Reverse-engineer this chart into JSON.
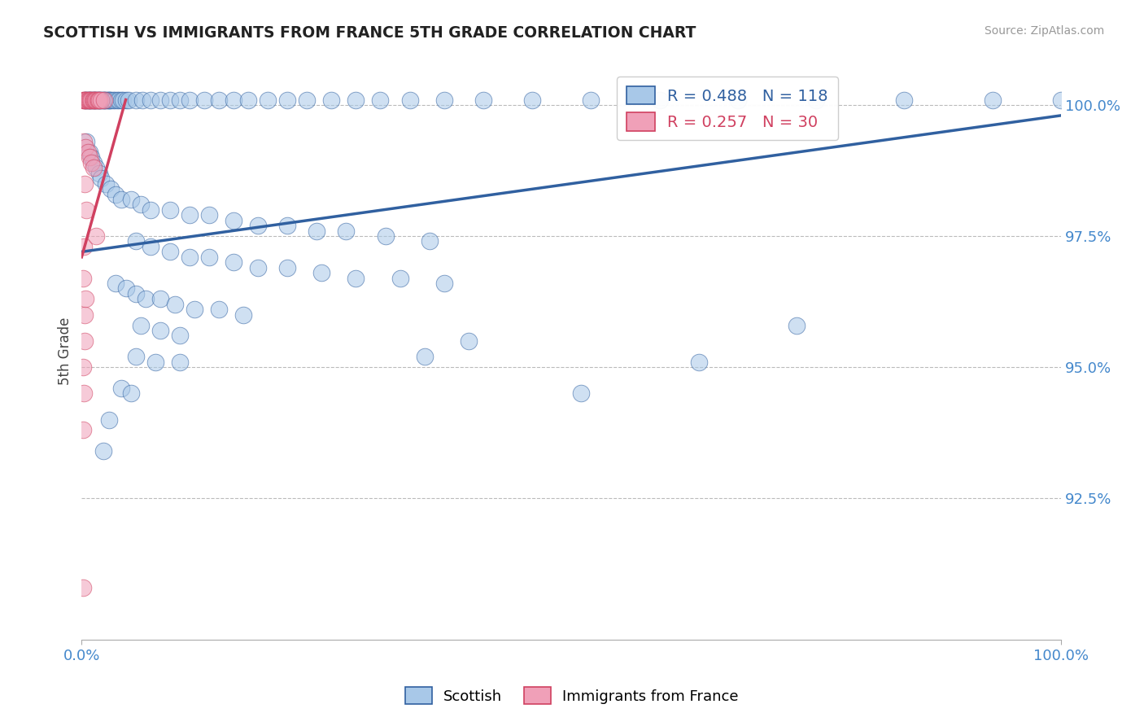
{
  "title": "SCOTTISH VS IMMIGRANTS FROM FRANCE 5TH GRADE CORRELATION CHART",
  "source": "Source: ZipAtlas.com",
  "ylabel": "5th Grade",
  "xlim": [
    0.0,
    1.0
  ],
  "ylim": [
    0.898,
    1.008
  ],
  "yticks": [
    0.925,
    0.95,
    0.975,
    1.0
  ],
  "ytick_labels": [
    "92.5%",
    "95.0%",
    "97.5%",
    "100.0%"
  ],
  "legend_blue_label": "Scottish",
  "legend_pink_label": "Immigrants from France",
  "r_blue": 0.488,
  "n_blue": 118,
  "r_pink": 0.257,
  "n_pink": 30,
  "blue_color": "#A8C8E8",
  "pink_color": "#F0A0B8",
  "blue_line_color": "#3060A0",
  "pink_line_color": "#D04060",
  "background_color": "#FFFFFF",
  "grid_color": "#BBBBBB",
  "title_color": "#222222",
  "axis_label_color": "#444444",
  "tick_color": "#4488CC",
  "source_color": "#999999",
  "blue_trend": [
    0.0,
    0.972,
    1.0,
    0.998
  ],
  "pink_trend": [
    0.0,
    0.971,
    0.045,
    1.001
  ],
  "scatter_blue": [
    [
      0.003,
      1.001
    ],
    [
      0.004,
      1.001
    ],
    [
      0.005,
      1.001
    ],
    [
      0.006,
      1.001
    ],
    [
      0.007,
      1.001
    ],
    [
      0.008,
      1.001
    ],
    [
      0.009,
      1.001
    ],
    [
      0.01,
      1.001
    ],
    [
      0.011,
      1.001
    ],
    [
      0.012,
      1.001
    ],
    [
      0.013,
      1.001
    ],
    [
      0.014,
      1.001
    ],
    [
      0.015,
      1.001
    ],
    [
      0.016,
      1.001
    ],
    [
      0.017,
      1.001
    ],
    [
      0.018,
      1.001
    ],
    [
      0.019,
      1.001
    ],
    [
      0.02,
      1.001
    ],
    [
      0.021,
      1.001
    ],
    [
      0.022,
      1.001
    ],
    [
      0.023,
      1.001
    ],
    [
      0.024,
      1.001
    ],
    [
      0.025,
      1.001
    ],
    [
      0.026,
      1.001
    ],
    [
      0.027,
      1.001
    ],
    [
      0.028,
      1.001
    ],
    [
      0.029,
      1.001
    ],
    [
      0.03,
      1.001
    ],
    [
      0.032,
      1.001
    ],
    [
      0.034,
      1.001
    ],
    [
      0.036,
      1.001
    ],
    [
      0.038,
      1.001
    ],
    [
      0.04,
      1.001
    ],
    [
      0.042,
      1.001
    ],
    [
      0.045,
      1.001
    ],
    [
      0.048,
      1.001
    ],
    [
      0.055,
      1.001
    ],
    [
      0.062,
      1.001
    ],
    [
      0.07,
      1.001
    ],
    [
      0.08,
      1.001
    ],
    [
      0.09,
      1.001
    ],
    [
      0.1,
      1.001
    ],
    [
      0.11,
      1.001
    ],
    [
      0.125,
      1.001
    ],
    [
      0.14,
      1.001
    ],
    [
      0.155,
      1.001
    ],
    [
      0.17,
      1.001
    ],
    [
      0.19,
      1.001
    ],
    [
      0.21,
      1.001
    ],
    [
      0.23,
      1.001
    ],
    [
      0.255,
      1.001
    ],
    [
      0.28,
      1.001
    ],
    [
      0.305,
      1.001
    ],
    [
      0.335,
      1.001
    ],
    [
      0.37,
      1.001
    ],
    [
      0.41,
      1.001
    ],
    [
      0.46,
      1.001
    ],
    [
      0.52,
      1.001
    ],
    [
      0.59,
      1.001
    ],
    [
      0.67,
      1.001
    ],
    [
      0.75,
      1.001
    ],
    [
      0.84,
      1.001
    ],
    [
      0.93,
      1.001
    ],
    [
      1.0,
      1.001
    ],
    [
      0.005,
      0.993
    ],
    [
      0.008,
      0.991
    ],
    [
      0.01,
      0.99
    ],
    [
      0.012,
      0.989
    ],
    [
      0.015,
      0.988
    ],
    [
      0.018,
      0.987
    ],
    [
      0.02,
      0.986
    ],
    [
      0.025,
      0.985
    ],
    [
      0.03,
      0.984
    ],
    [
      0.035,
      0.983
    ],
    [
      0.04,
      0.982
    ],
    [
      0.05,
      0.982
    ],
    [
      0.06,
      0.981
    ],
    [
      0.07,
      0.98
    ],
    [
      0.09,
      0.98
    ],
    [
      0.11,
      0.979
    ],
    [
      0.13,
      0.979
    ],
    [
      0.155,
      0.978
    ],
    [
      0.18,
      0.977
    ],
    [
      0.21,
      0.977
    ],
    [
      0.24,
      0.976
    ],
    [
      0.27,
      0.976
    ],
    [
      0.055,
      0.974
    ],
    [
      0.07,
      0.973
    ],
    [
      0.09,
      0.972
    ],
    [
      0.11,
      0.971
    ],
    [
      0.13,
      0.971
    ],
    [
      0.155,
      0.97
    ],
    [
      0.18,
      0.969
    ],
    [
      0.21,
      0.969
    ],
    [
      0.245,
      0.968
    ],
    [
      0.28,
      0.967
    ],
    [
      0.325,
      0.967
    ],
    [
      0.37,
      0.966
    ],
    [
      0.31,
      0.975
    ],
    [
      0.355,
      0.974
    ],
    [
      0.035,
      0.966
    ],
    [
      0.045,
      0.965
    ],
    [
      0.055,
      0.964
    ],
    [
      0.065,
      0.963
    ],
    [
      0.08,
      0.963
    ],
    [
      0.095,
      0.962
    ],
    [
      0.115,
      0.961
    ],
    [
      0.14,
      0.961
    ],
    [
      0.165,
      0.96
    ],
    [
      0.06,
      0.958
    ],
    [
      0.08,
      0.957
    ],
    [
      0.1,
      0.956
    ],
    [
      0.055,
      0.952
    ],
    [
      0.075,
      0.951
    ],
    [
      0.1,
      0.951
    ],
    [
      0.04,
      0.946
    ],
    [
      0.05,
      0.945
    ],
    [
      0.028,
      0.94
    ],
    [
      0.022,
      0.934
    ],
    [
      0.35,
      0.952
    ],
    [
      0.395,
      0.955
    ],
    [
      0.51,
      0.945
    ],
    [
      0.63,
      0.951
    ],
    [
      0.73,
      0.958
    ]
  ],
  "scatter_pink": [
    [
      0.001,
      1.001
    ],
    [
      0.002,
      1.001
    ],
    [
      0.003,
      1.001
    ],
    [
      0.004,
      1.001
    ],
    [
      0.005,
      1.001
    ],
    [
      0.006,
      1.001
    ],
    [
      0.007,
      1.001
    ],
    [
      0.008,
      1.001
    ],
    [
      0.009,
      1.001
    ],
    [
      0.01,
      1.001
    ],
    [
      0.011,
      1.001
    ],
    [
      0.012,
      1.001
    ],
    [
      0.013,
      1.001
    ],
    [
      0.014,
      1.001
    ],
    [
      0.015,
      1.001
    ],
    [
      0.016,
      1.001
    ],
    [
      0.017,
      1.001
    ],
    [
      0.018,
      1.001
    ],
    [
      0.02,
      1.001
    ],
    [
      0.023,
      1.001
    ],
    [
      0.002,
      0.993
    ],
    [
      0.004,
      0.992
    ],
    [
      0.006,
      0.991
    ],
    [
      0.008,
      0.99
    ],
    [
      0.01,
      0.989
    ],
    [
      0.012,
      0.988
    ],
    [
      0.003,
      0.985
    ],
    [
      0.005,
      0.98
    ],
    [
      0.002,
      0.973
    ],
    [
      0.001,
      0.967
    ],
    [
      0.003,
      0.96
    ],
    [
      0.001,
      0.95
    ],
    [
      0.002,
      0.945
    ],
    [
      0.001,
      0.938
    ],
    [
      0.015,
      0.975
    ],
    [
      0.004,
      0.963
    ],
    [
      0.003,
      0.955
    ],
    [
      0.001,
      0.908
    ]
  ]
}
